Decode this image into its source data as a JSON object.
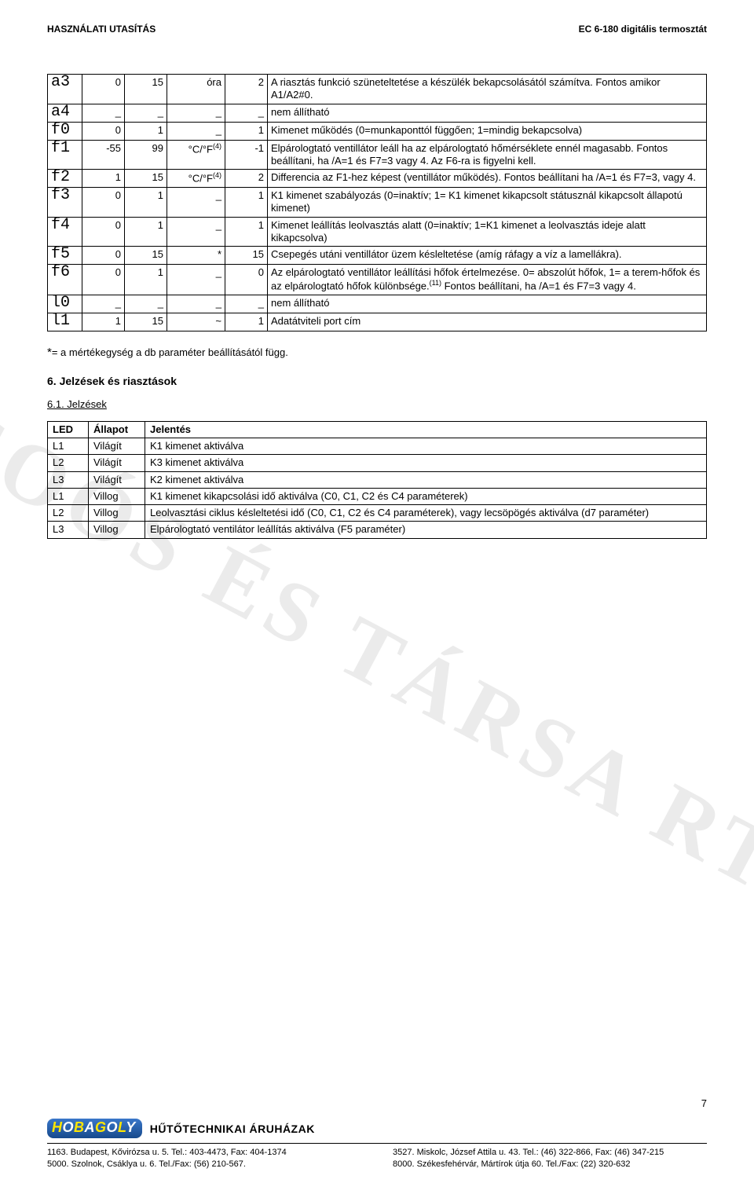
{
  "header": {
    "left": "HASZNÁLATI UTASÍTÁS",
    "right": "EC 6-180 digitális termosztát"
  },
  "params": [
    {
      "code": "a3",
      "c1": "0",
      "c2": "15",
      "unit": "óra",
      "val": "2",
      "desc": "A riasztás funkció szüneteltetése a készülék bekapcsolásától számítva. Fontos amikor A1/A2#0."
    },
    {
      "code": "a4",
      "c1": "_",
      "c2": "_",
      "unit": "_",
      "val": "_",
      "desc": "nem állítható"
    },
    {
      "code": "f0",
      "c1": "0",
      "c2": "1",
      "unit": "_",
      "val": "1",
      "desc": "Kimenet működés (0=munkaponttól függően; 1=mindig bekapcsolva)"
    },
    {
      "code": "f1",
      "c1": "-55",
      "c2": "99",
      "unit": "°C/°F(4)",
      "val": "-1",
      "desc": "Elpárologtató ventillátor leáll ha az elpárologtató hőmérséklete ennél magasabb. Fontos beállítani, ha /A=1 és F7=3 vagy 4. Az F6-ra is figyelni kell."
    },
    {
      "code": "f2",
      "c1": "1",
      "c2": "15",
      "unit": "°C/°F(4)",
      "val": "2",
      "desc": "Differencia az F1-hez képest (ventillátor működés). Fontos beállítani ha /A=1 és F7=3, vagy 4."
    },
    {
      "code": "f3",
      "c1": "0",
      "c2": "1",
      "unit": "_",
      "val": "1",
      "desc": "K1 kimenet szabályozás (0=inaktív; 1= K1 kimenet kikapcsolt státusznál kikapcsolt állapotú kimenet)"
    },
    {
      "code": "f4",
      "c1": "0",
      "c2": "1",
      "unit": "_",
      "val": "1",
      "desc": "Kimenet leállítás leolvasztás alatt (0=inaktív; 1=K1 kimenet a leolvasztás ideje alatt kikapcsolva)"
    },
    {
      "code": "f5",
      "c1": "0",
      "c2": "15",
      "unit": "*",
      "val": "15",
      "desc": "Csepegés utáni ventillátor üzem késleltetése (amíg ráfagy a víz a lamellákra)."
    },
    {
      "code": "f6",
      "c1": "0",
      "c2": "1",
      "unit": "_",
      "val": "0",
      "desc": "Az elpárologtató ventillátor leállítási hőfok értelmezése. 0= abszolút hőfok, 1= a terem-hőfok és az elpárologtató hőfok különbsége.(11) Fontos beállítani, ha /A=1 és F7=3 vagy 4."
    },
    {
      "code": "l0",
      "c1": "_",
      "c2": "_",
      "unit": "_",
      "val": "_",
      "desc": "nem állítható"
    },
    {
      "code": "l1",
      "c1": "1",
      "c2": "15",
      "unit": "~",
      "val": "1",
      "desc": "Adatátviteli port cím"
    }
  ],
  "footnote": {
    "star": "*",
    "text": "= a mértékegység a db paraméter beállításától függ."
  },
  "section6": "6. Jelzések és riasztások",
  "section61": "6.1. Jelzések",
  "led": {
    "head": {
      "c1": "LED",
      "c2": "Állapot",
      "c3": "Jelentés"
    },
    "rows": [
      {
        "c1": "L1",
        "c2": "Világít",
        "c3": "K1 kimenet aktiválva"
      },
      {
        "c1": "L2",
        "c2": "Világít",
        "c3": "K3 kimenet aktiválva"
      },
      {
        "c1": "L3",
        "c2": "Világít",
        "c3": "K2 kimenet aktiválva"
      },
      {
        "c1": "L1",
        "c2": "Villog",
        "c3": "K1 kimenet kikapcsolási idő aktiválva (C0, C1, C2 és C4 paraméterek)"
      },
      {
        "c1": "L2",
        "c2": "Villog",
        "c3": "Leolvasztási ciklus késleltetési idő (C0, C1, C2 és C4 paraméterek), vagy lecsöpögés aktiválva (d7 paraméter)"
      },
      {
        "c1": "L3",
        "c2": "Villog",
        "c3": "Elpárologtató ventilátor leállítás aktiválva (F5 paraméter)"
      }
    ]
  },
  "watermark": "SOÓS ÉS TÁRSA RT.",
  "footer": {
    "shop": "HŰTŐTECHNIKAI ÁRUHÁZAK",
    "pagenum": "7",
    "logo": {
      "a": "H",
      "b": "O",
      "c": "B",
      "d": "A",
      "e": "G",
      "f": "O",
      "g": "L",
      "h": "Y"
    },
    "addr_left": {
      "l1": "1163. Budapest, Kővirózsa u. 5. Tel.: 403-4473, Fax: 404-1374",
      "l2": "5000. Szolnok, Csáklya u. 6. Tel./Fax: (56) 210-567."
    },
    "addr_right": {
      "l1": "3527. Miskolc, József Attila u. 43. Tel.: (46) 322-866, Fax: (46) 347-215",
      "l2": "8000. Székesfehérvár, Mártírok útja 60. Tel./Fax: (22) 320-632"
    }
  }
}
